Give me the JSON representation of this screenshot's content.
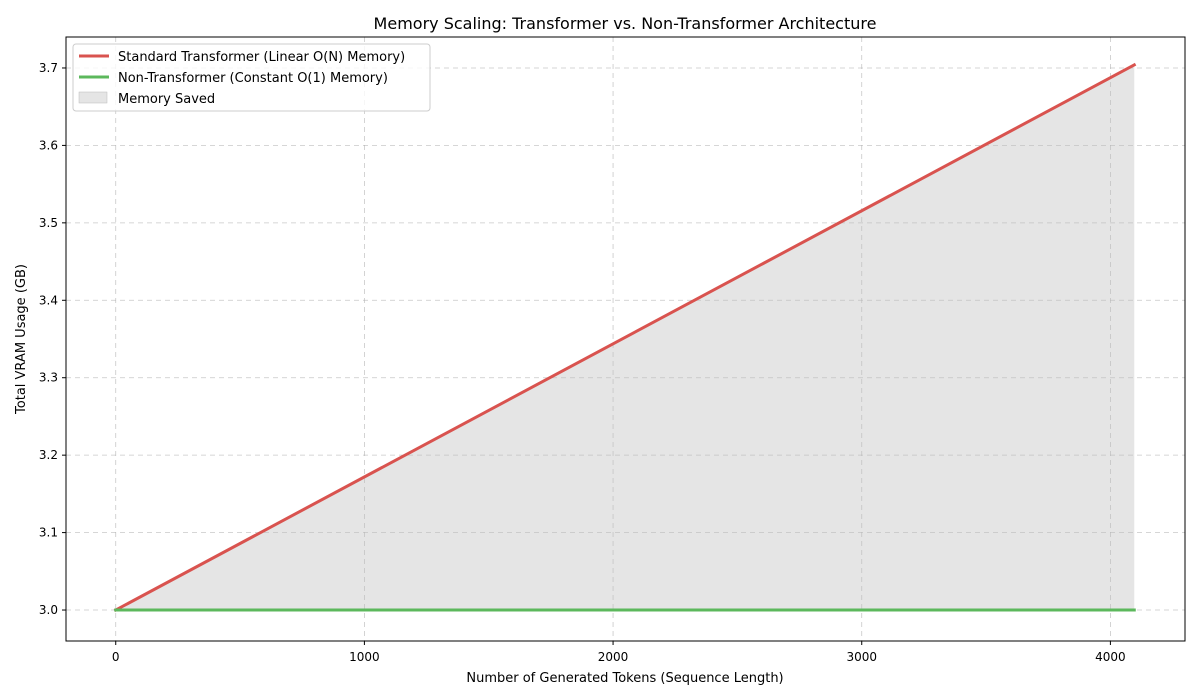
{
  "chart_data": {
    "type": "line",
    "title": "Memory Scaling: Transformer vs. Non-Transformer Architecture",
    "xlabel": "Number of Generated Tokens (Sequence Length)",
    "ylabel": "Total VRAM Usage (GB)",
    "xlim": [
      -200,
      4300
    ],
    "ylim": [
      2.96,
      3.74
    ],
    "xticks": [
      0,
      1000,
      2000,
      3000,
      4000
    ],
    "yticks": [
      3.0,
      3.1,
      3.2,
      3.3,
      3.4,
      3.5,
      3.6,
      3.7
    ],
    "grid": true,
    "legend_position": "top-left",
    "series": [
      {
        "name": "Standard Transformer (Linear O(N) Memory)",
        "color": "#d9534f",
        "x": [
          0,
          4096
        ],
        "y": [
          3.0,
          3.704
        ]
      },
      {
        "name": "Non-Transformer (Constant O(1) Memory)",
        "color": "#5cb85c",
        "x": [
          0,
          4096
        ],
        "y": [
          3.0,
          3.0
        ]
      }
    ],
    "fill_between": {
      "name": "Memory Saved",
      "color": "#bfbfbf",
      "upper": "Standard Transformer (Linear O(N) Memory)",
      "lower": "Non-Transformer (Constant O(1) Memory)"
    }
  }
}
